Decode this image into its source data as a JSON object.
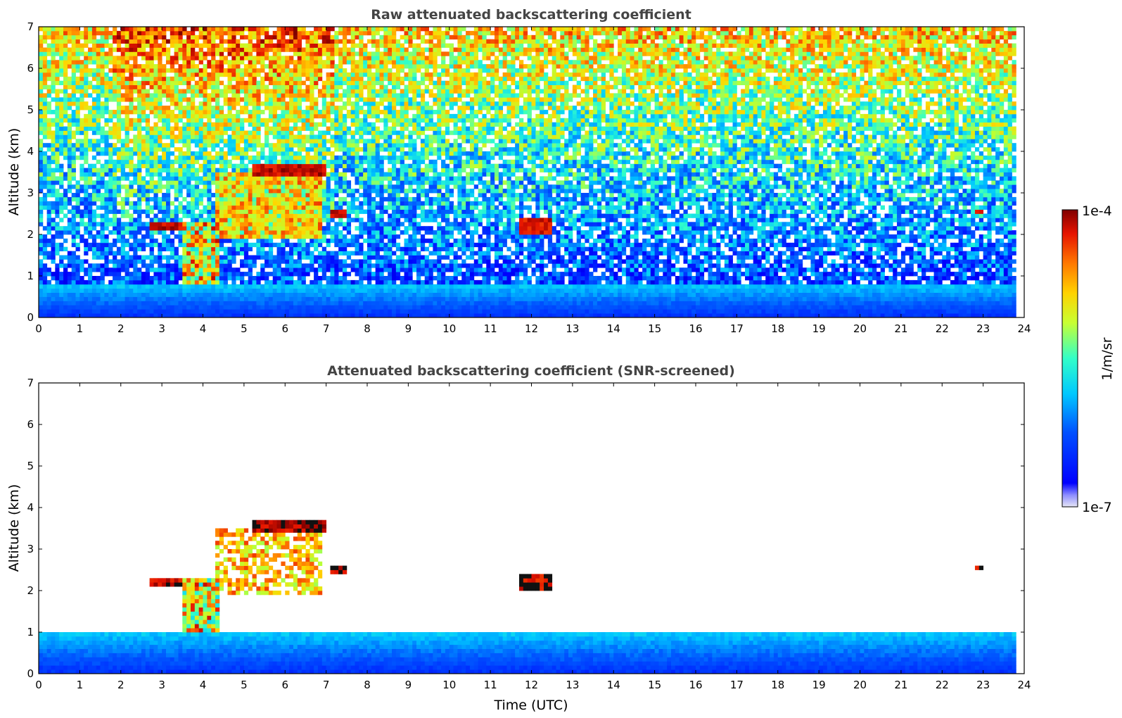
{
  "chart_data": [
    {
      "type": "heatmap",
      "title": "Raw attenuated backscattering coefficient",
      "xlabel": "",
      "ylabel": "Altitude (km)",
      "xlim": [
        0,
        24
      ],
      "ylim": [
        0,
        7
      ],
      "x_ticks": [
        0,
        1,
        2,
        3,
        4,
        5,
        6,
        7,
        8,
        9,
        10,
        11,
        12,
        13,
        14,
        15,
        16,
        17,
        18,
        19,
        20,
        21,
        22,
        23,
        24
      ],
      "y_ticks": [
        0,
        1,
        2,
        3,
        4,
        5,
        6,
        7
      ],
      "data_end_time": 23.8,
      "features": [
        {
          "kind": "boundary-layer",
          "x_range": [
            0,
            23.8
          ],
          "y_range": [
            0,
            0.8
          ]
        },
        {
          "kind": "rain-column",
          "x_range": [
            3.55,
            4.35
          ],
          "y_range": [
            0,
            2.3
          ]
        },
        {
          "kind": "cloud-layer",
          "x_range": [
            2.75,
            3.55
          ],
          "y_range": [
            2.15,
            2.3
          ]
        },
        {
          "kind": "cloud-layer",
          "x_range": [
            5.2,
            6.95
          ],
          "y_range": [
            3.35,
            3.7
          ]
        },
        {
          "kind": "virga",
          "x_range": [
            4.3,
            6.9
          ],
          "y_range": [
            1.9,
            3.5
          ]
        },
        {
          "kind": "cloud-patch",
          "x_range": [
            11.75,
            12.45
          ],
          "y_range": [
            2.0,
            2.4
          ]
        },
        {
          "kind": "cloud-patch",
          "x_range": [
            7.1,
            7.5
          ],
          "y_range": [
            2.45,
            2.65
          ]
        },
        {
          "kind": "cloud-patch",
          "x_range": [
            22.8,
            23.0
          ],
          "y_range": [
            2.55,
            2.65
          ]
        }
      ]
    },
    {
      "type": "heatmap",
      "title": "Attenuated backscattering coefficient (SNR-screened)",
      "xlabel": "Time (UTC)",
      "ylabel": "Altitude (km)",
      "xlim": [
        0,
        24
      ],
      "ylim": [
        0,
        7
      ],
      "x_ticks": [
        0,
        1,
        2,
        3,
        4,
        5,
        6,
        7,
        8,
        9,
        10,
        11,
        12,
        13,
        14,
        15,
        16,
        17,
        18,
        19,
        20,
        21,
        22,
        23,
        24
      ],
      "y_ticks": [
        0,
        1,
        2,
        3,
        4,
        5,
        6,
        7
      ],
      "data_end_time": 23.8,
      "features": [
        {
          "kind": "boundary-layer",
          "x_range": [
            0,
            23.8
          ],
          "y_range": [
            0,
            1.0
          ]
        },
        {
          "kind": "rain-column",
          "x_range": [
            3.55,
            4.35
          ],
          "y_range": [
            0,
            2.3
          ]
        },
        {
          "kind": "cloud-layer",
          "x_range": [
            2.75,
            3.55
          ],
          "y_range": [
            2.15,
            2.3
          ]
        },
        {
          "kind": "cloud-layer",
          "x_range": [
            5.2,
            6.95
          ],
          "y_range": [
            3.35,
            3.7
          ]
        },
        {
          "kind": "virga",
          "x_range": [
            4.3,
            6.9
          ],
          "y_range": [
            1.9,
            3.5
          ]
        },
        {
          "kind": "cloud-patch",
          "x_range": [
            11.75,
            12.45
          ],
          "y_range": [
            2.0,
            2.4
          ]
        },
        {
          "kind": "cloud-patch",
          "x_range": [
            7.1,
            7.5
          ],
          "y_range": [
            2.45,
            2.65
          ]
        },
        {
          "kind": "cloud-patch",
          "x_range": [
            22.8,
            23.0
          ],
          "y_range": [
            2.55,
            2.65
          ]
        }
      ]
    }
  ],
  "colorbar": {
    "label": "1/m/sr",
    "max_label": "1e-4",
    "min_label": "1e-7",
    "scale": "log",
    "colormap": "jet"
  },
  "colors": {
    "low": "#0000ff",
    "mid_low": "#00c8ff",
    "mid": "#c8ff32",
    "mid_high": "#ff9600",
    "high": "#800000",
    "title_text": "#444444"
  }
}
